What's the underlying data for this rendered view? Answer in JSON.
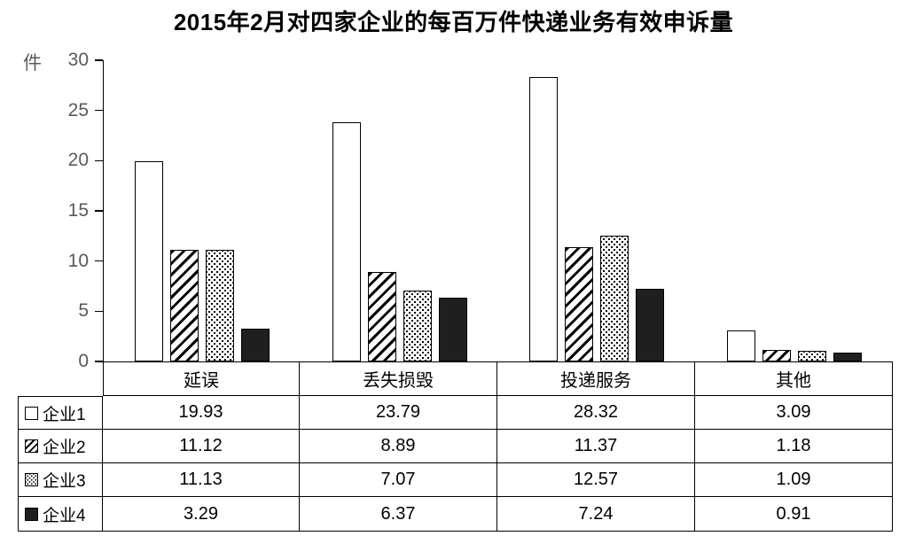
{
  "title": "2015年2月对四家企业的每百万件快递业务有效申诉量",
  "unit_label": "件",
  "colors": {
    "axis_text": "#595959",
    "title_text": "#000000",
    "bar_border": "#000000",
    "bar_solid_fill": "#1f1f1f",
    "background": "#ffffff"
  },
  "chart_data": {
    "type": "bar",
    "title": "2015年2月对四家企业的每百万件快递业务有效申诉量",
    "xlabel": "",
    "ylabel": "件",
    "ylim": [
      0,
      30
    ],
    "yticks": [
      30,
      25,
      20,
      15,
      10,
      5,
      0
    ],
    "grid": false,
    "legend_position": "table-left",
    "categories": [
      "延误",
      "丢失损毁",
      "投递服务",
      "其他"
    ],
    "series": [
      {
        "name": "企业1",
        "pattern": "white",
        "values": [
          19.93,
          23.79,
          28.32,
          3.09
        ]
      },
      {
        "name": "企业2",
        "pattern": "hatch",
        "values": [
          11.12,
          8.89,
          11.37,
          1.18
        ]
      },
      {
        "name": "企业3",
        "pattern": "dots",
        "values": [
          11.13,
          7.07,
          12.57,
          1.09
        ]
      },
      {
        "name": "企业4",
        "pattern": "solid",
        "values": [
          3.29,
          6.37,
          7.24,
          0.91
        ]
      }
    ]
  }
}
